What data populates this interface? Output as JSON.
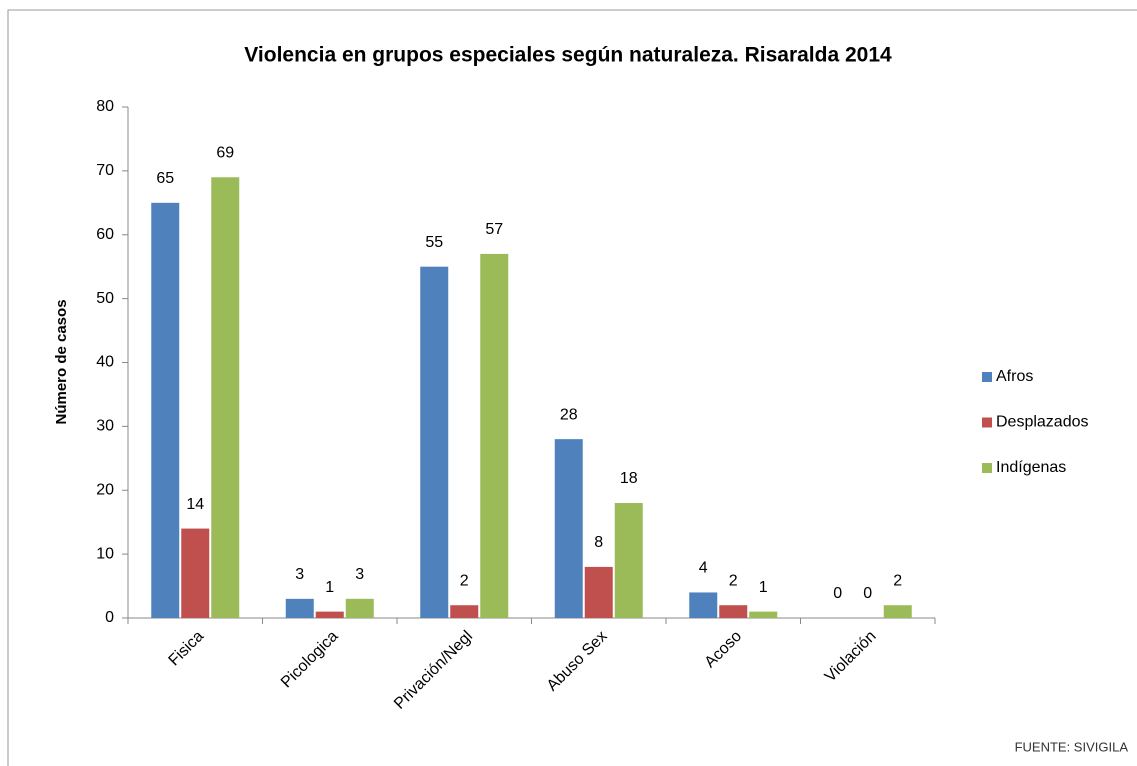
{
  "chart_data": {
    "type": "bar",
    "title": "Violencia en grupos especiales según naturaleza. Risaralda 2014",
    "y_label": "Número de casos",
    "source": "FUENTE: SIVIGILA",
    "categories": [
      "Fisica",
      "Picologica",
      "Privación/Negl",
      "Abuso Sex",
      "Acoso",
      "Violación"
    ],
    "series": [
      {
        "name": "Afros",
        "color": "#4f81bd",
        "values": [
          65,
          3,
          55,
          28,
          4,
          0
        ]
      },
      {
        "name": "Desplazados",
        "color": "#c0504d",
        "values": [
          14,
          1,
          2,
          8,
          2,
          0
        ]
      },
      {
        "name": "Indígenas",
        "color": "#9bbb59",
        "values": [
          69,
          3,
          57,
          18,
          1,
          2
        ]
      }
    ],
    "ylim": [
      0,
      80
    ],
    "yticks": [
      0,
      10,
      20,
      30,
      40,
      50,
      60,
      70,
      80
    ],
    "legend": "right"
  }
}
